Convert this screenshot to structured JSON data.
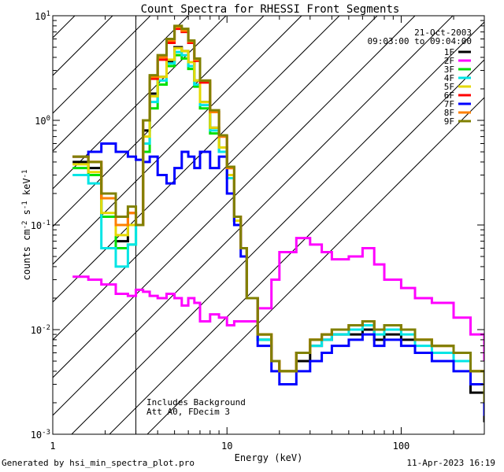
{
  "chart_data": {
    "type": "line",
    "title": "Count Spectra for RHESSI Front Segments",
    "xlabel": "Energy (keV)",
    "ylabel": "counts cm^-2 s^-1 keV^-1",
    "xscale": "log",
    "yscale": "log",
    "xlim": [
      1,
      300
    ],
    "ylim": [
      0.001,
      10
    ],
    "x_ticks": [
      {
        "value": 1,
        "label": "1"
      },
      {
        "value": 10,
        "label": "10"
      },
      {
        "value": 100,
        "label": "100"
      }
    ],
    "y_ticks": [
      {
        "value": 0.001,
        "base": "10",
        "exp": "-3"
      },
      {
        "value": 0.01,
        "base": "10",
        "exp": "-2"
      },
      {
        "value": 0.1,
        "base": "10",
        "exp": "-1"
      },
      {
        "value": 1,
        "base": "10",
        "exp": "0"
      },
      {
        "value": 10,
        "base": "10",
        "exp": "1"
      }
    ],
    "date": "21-Oct-2003",
    "time_range": "09:03:00 to 09:04:00",
    "excluded_region_max_kev": 3,
    "annotations": [
      "Includes Background",
      "Att A0, FDecim 3"
    ],
    "series": [
      {
        "name": "1F",
        "color": "#000000",
        "x": [
          1.3,
          1.6,
          1.9,
          2.3,
          2.7,
          3.0,
          3.3,
          3.6,
          4.0,
          4.5,
          5.0,
          5.5,
          6.0,
          6.5,
          7.0,
          8.0,
          9.0,
          10,
          11,
          12,
          13,
          15,
          18,
          20,
          25,
          30,
          35,
          40,
          50,
          60,
          70,
          80,
          100,
          120,
          150,
          200,
          250,
          300
        ],
        "y": [
          0.4,
          0.35,
          0.12,
          0.07,
          0.1,
          0.1,
          0.8,
          1.8,
          2.6,
          3.6,
          5.0,
          4.6,
          3.6,
          2.4,
          1.5,
          0.85,
          0.55,
          0.3,
          0.11,
          0.06,
          0.02,
          0.008,
          0.005,
          0.004,
          0.005,
          0.007,
          0.008,
          0.009,
          0.009,
          0.01,
          0.008,
          0.009,
          0.008,
          0.006,
          0.006,
          0.005,
          0.0025,
          0.0013
        ]
      },
      {
        "name": "2F",
        "color": "#ff00ff",
        "x": [
          1.3,
          1.6,
          1.9,
          2.3,
          2.7,
          3.0,
          3.3,
          3.6,
          4.0,
          4.5,
          5.0,
          5.5,
          6.0,
          6.5,
          7.0,
          8.0,
          9.0,
          10,
          11,
          12,
          13,
          15,
          18,
          20,
          25,
          30,
          35,
          40,
          50,
          60,
          70,
          80,
          100,
          120,
          150,
          200,
          250,
          300
        ],
        "y": [
          0.032,
          0.03,
          0.027,
          0.022,
          0.021,
          0.024,
          0.023,
          0.021,
          0.02,
          0.022,
          0.02,
          0.017,
          0.02,
          0.018,
          0.012,
          0.014,
          0.013,
          0.011,
          0.012,
          0.012,
          0.012,
          0.016,
          0.03,
          0.055,
          0.075,
          0.065,
          0.055,
          0.047,
          0.05,
          0.06,
          0.042,
          0.03,
          0.025,
          0.02,
          0.018,
          0.013,
          0.009,
          0.005
        ]
      },
      {
        "name": "3F",
        "color": "#00e000",
        "x": [
          1.3,
          1.6,
          1.9,
          2.3,
          2.7,
          3.0,
          3.3,
          3.6,
          4.0,
          4.5,
          5.0,
          5.5,
          6.0,
          6.5,
          7.0,
          8.0,
          9.0,
          10,
          11,
          12,
          13,
          15,
          18,
          20,
          25,
          30,
          35,
          40,
          50,
          60,
          70,
          80,
          100,
          120,
          150,
          200,
          250,
          300
        ],
        "y": [
          0.35,
          0.3,
          0.12,
          0.06,
          0.065,
          0.1,
          0.5,
          1.3,
          2.2,
          3.3,
          4.2,
          3.9,
          3.1,
          2.1,
          1.3,
          0.75,
          0.5,
          0.28,
          0.11,
          0.06,
          0.02,
          0.008,
          0.005,
          0.004,
          0.006,
          0.008,
          0.009,
          0.01,
          0.011,
          0.012,
          0.01,
          0.011,
          0.01,
          0.008,
          0.007,
          0.006,
          0.004,
          0.002
        ]
      },
      {
        "name": "4F",
        "color": "#00e5e5",
        "x": [
          1.3,
          1.6,
          1.9,
          2.3,
          2.7,
          3.0,
          3.3,
          3.6,
          4.0,
          4.5,
          5.0,
          5.5,
          6.0,
          6.5,
          7.0,
          8.0,
          9.0,
          10,
          11,
          12,
          13,
          15,
          18,
          20,
          25,
          30,
          35,
          40,
          50,
          60,
          70,
          80,
          100,
          120,
          150,
          200,
          250,
          300
        ],
        "y": [
          0.3,
          0.25,
          0.06,
          0.04,
          0.065,
          0.1,
          0.6,
          1.5,
          2.4,
          3.5,
          4.5,
          4.2,
          3.3,
          2.2,
          1.4,
          0.8,
          0.5,
          0.28,
          0.11,
          0.06,
          0.02,
          0.008,
          0.005,
          0.004,
          0.006,
          0.007,
          0.008,
          0.009,
          0.01,
          0.011,
          0.009,
          0.01,
          0.009,
          0.007,
          0.006,
          0.005,
          0.003,
          0.0018
        ]
      },
      {
        "name": "5F",
        "color": "#e5d800",
        "x": [
          1.3,
          1.6,
          1.9,
          2.3,
          2.7,
          3.0,
          3.3,
          3.6,
          4.0,
          4.5,
          5.0,
          5.5,
          6.0,
          6.5,
          7.0,
          8.0,
          9.0,
          10,
          11,
          12,
          13,
          15,
          18,
          20,
          25,
          30,
          35,
          40,
          50,
          60,
          70,
          80,
          100,
          120,
          150,
          200,
          250,
          300
        ],
        "y": [
          0.38,
          0.32,
          0.13,
          0.08,
          0.1,
          0.1,
          0.7,
          1.7,
          2.6,
          3.8,
          4.9,
          4.6,
          3.6,
          2.4,
          1.5,
          0.85,
          0.55,
          0.3,
          0.11,
          0.06,
          0.02,
          0.009,
          0.005,
          0.004,
          0.006,
          0.008,
          0.009,
          0.01,
          0.011,
          0.012,
          0.01,
          0.011,
          0.01,
          0.008,
          0.007,
          0.006,
          0.004,
          0.002
        ]
      },
      {
        "name": "6F",
        "color": "#ff0000",
        "x": [
          1.3,
          1.6,
          1.9,
          2.3,
          2.7,
          3.0,
          3.3,
          3.6,
          4.0,
          4.5,
          5.0,
          5.5,
          6.0,
          6.5,
          7.0,
          8.0,
          9.0,
          10,
          11,
          12,
          13,
          15,
          18,
          20,
          25,
          30,
          35,
          40,
          50,
          60,
          70,
          80,
          100,
          120,
          150,
          200,
          250,
          300
        ],
        "y": [
          0.45,
          0.4,
          0.18,
          0.1,
          0.13,
          0.1,
          1.0,
          2.5,
          3.8,
          5.5,
          7.5,
          7.0,
          5.5,
          3.7,
          2.3,
          1.2,
          0.7,
          0.35,
          0.12,
          0.06,
          0.02,
          0.009,
          0.005,
          0.004,
          0.006,
          0.008,
          0.009,
          0.01,
          0.011,
          0.012,
          0.01,
          0.011,
          0.01,
          0.008,
          0.007,
          0.006,
          0.004,
          0.002
        ]
      },
      {
        "name": "7F",
        "color": "#0000ff",
        "x": [
          1.3,
          1.6,
          1.9,
          2.3,
          2.7,
          3.0,
          3.3,
          3.6,
          4.0,
          4.5,
          5.0,
          5.5,
          6.0,
          6.5,
          7.0,
          8.0,
          9.0,
          10,
          11,
          12,
          13,
          15,
          18,
          20,
          25,
          30,
          35,
          40,
          50,
          60,
          70,
          80,
          100,
          120,
          150,
          200,
          250,
          300
        ],
        "y": [
          0.45,
          0.5,
          0.6,
          0.5,
          0.45,
          0.42,
          0.4,
          0.45,
          0.3,
          0.25,
          0.35,
          0.5,
          0.45,
          0.35,
          0.5,
          0.35,
          0.45,
          0.2,
          0.1,
          0.05,
          0.02,
          0.007,
          0.004,
          0.003,
          0.004,
          0.005,
          0.006,
          0.007,
          0.008,
          0.009,
          0.007,
          0.008,
          0.007,
          0.006,
          0.005,
          0.004,
          0.003,
          0.0015
        ]
      },
      {
        "name": "8F",
        "color": "#ff8000",
        "x": [
          1.3,
          1.6,
          1.9,
          2.3,
          2.7,
          3.0,
          3.3,
          3.6,
          4.0,
          4.5,
          5.0,
          5.5,
          6.0,
          6.5,
          7.0,
          8.0,
          9.0,
          10,
          11,
          12,
          13,
          15,
          18,
          20,
          25,
          30,
          35,
          40,
          50,
          60,
          70,
          80,
          100,
          120,
          150,
          200,
          250,
          300
        ],
        "y": [
          0.45,
          0.4,
          0.18,
          0.1,
          0.13,
          0.1,
          1.0,
          2.6,
          4.0,
          5.8,
          7.8,
          7.2,
          5.7,
          3.8,
          2.4,
          1.2,
          0.7,
          0.35,
          0.12,
          0.06,
          0.02,
          0.009,
          0.005,
          0.004,
          0.006,
          0.008,
          0.009,
          0.01,
          0.011,
          0.012,
          0.01,
          0.011,
          0.01,
          0.008,
          0.007,
          0.006,
          0.004,
          0.002
        ]
      },
      {
        "name": "9F",
        "color": "#808000",
        "x": [
          1.3,
          1.6,
          1.9,
          2.3,
          2.7,
          3.0,
          3.3,
          3.6,
          4.0,
          4.5,
          5.0,
          5.5,
          6.0,
          6.5,
          7.0,
          8.0,
          9.0,
          10,
          11,
          12,
          13,
          15,
          18,
          20,
          25,
          30,
          35,
          40,
          50,
          60,
          70,
          80,
          100,
          120,
          150,
          200,
          250,
          300
        ],
        "y": [
          0.45,
          0.4,
          0.2,
          0.12,
          0.15,
          0.1,
          1.0,
          2.7,
          4.2,
          6.0,
          8.0,
          7.5,
          5.8,
          3.9,
          2.4,
          1.25,
          0.72,
          0.36,
          0.12,
          0.06,
          0.02,
          0.009,
          0.005,
          0.004,
          0.006,
          0.008,
          0.009,
          0.01,
          0.011,
          0.012,
          0.01,
          0.011,
          0.01,
          0.008,
          0.007,
          0.006,
          0.004,
          0.002
        ]
      }
    ]
  },
  "footer": {
    "generated_by": "Generated by hsi_min_spectra_plot.pro",
    "timestamp": "11-Apr-2023 16:19"
  }
}
